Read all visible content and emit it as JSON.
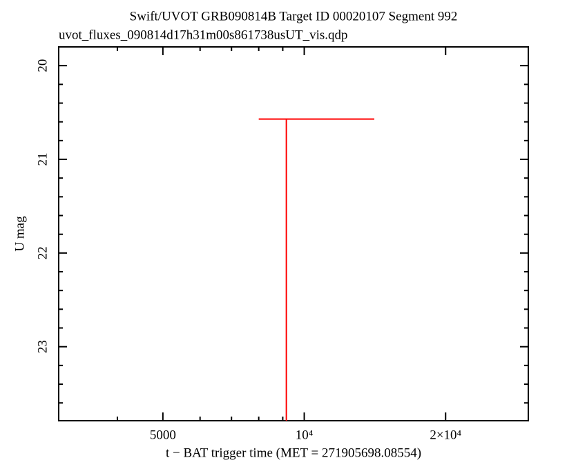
{
  "chart_data": {
    "type": "upper-limit",
    "title": "Swift/UVOT GRB090814B Target ID 00020107 Segment 992",
    "subtitle": "uvot_fluxes_090814d17h31m00s861738usUT_vis.qdp",
    "x_label": "t − BAT trigger time (MET = 271905698.08554)",
    "y_label": "U mag",
    "x_scale": "log",
    "xlim": [
      3000,
      30000
    ],
    "xticks": [
      5000,
      {
        "value": 10000,
        "label": "10⁴"
      },
      {
        "value": 20000,
        "label": "2×10⁴"
      }
    ],
    "xminorticks": [
      4000,
      6000,
      7000,
      8000,
      9000
    ],
    "ylim": [
      23.79,
      19.8
    ],
    "yticks": [
      20,
      21,
      22,
      23
    ],
    "yminorticks": [
      19.8,
      20.2,
      20.4,
      20.6,
      20.8,
      21.2,
      21.4,
      21.6,
      21.8,
      22.2,
      22.4,
      22.6,
      22.8,
      23.2,
      23.4,
      23.6
    ],
    "color": "#ff0000",
    "x": [
      9160
    ],
    "x_low": [
      8000
    ],
    "x_high": [
      14100
    ],
    "values": [
      20.57
    ]
  }
}
